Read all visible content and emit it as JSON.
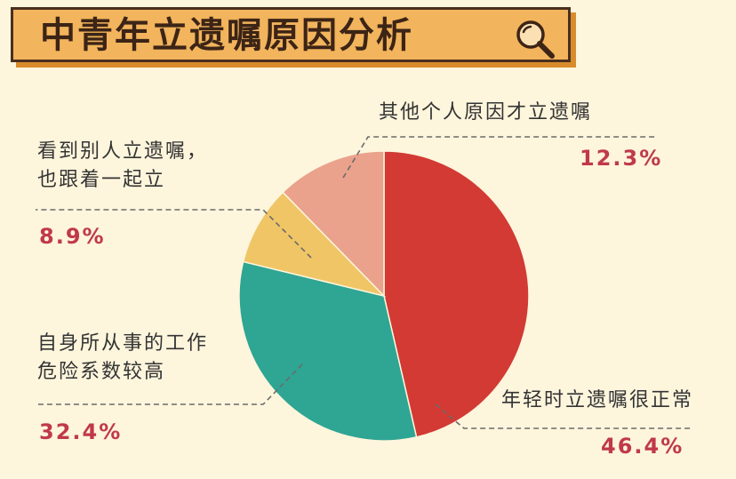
{
  "title": "中青年立遗嘱原因分析",
  "icon": "magnifier-icon",
  "colors": {
    "background": "#fdf5dc",
    "title_fill": "#f2b45c",
    "title_border": "#4a2f1f",
    "title_shadow": "#d98c2b",
    "percent_text": "#c0394a"
  },
  "chart_data": {
    "type": "pie",
    "title": "中青年立遗嘱原因分析",
    "legend": "none",
    "slices": [
      {
        "label": "年轻时立遗嘱很正常",
        "value": 46.4,
        "display": "46.4%",
        "color": "#d23a33"
      },
      {
        "label": "自身所从事的工作危险系数较高",
        "label_lines": [
          "自身所从事的工作",
          "危险系数较高"
        ],
        "value": 32.4,
        "display": "32.4%",
        "color": "#2fa594"
      },
      {
        "label": "看到别人立遗嘱，也跟着一起立",
        "label_lines": [
          "看到别人立遗嘱，",
          "也跟着一起立"
        ],
        "value": 8.9,
        "display": "8.9%",
        "color": "#f0c566"
      },
      {
        "label": "其他个人原因才立遗嘱",
        "value": 12.3,
        "display": "12.3%",
        "color": "#eaa28c"
      }
    ]
  }
}
